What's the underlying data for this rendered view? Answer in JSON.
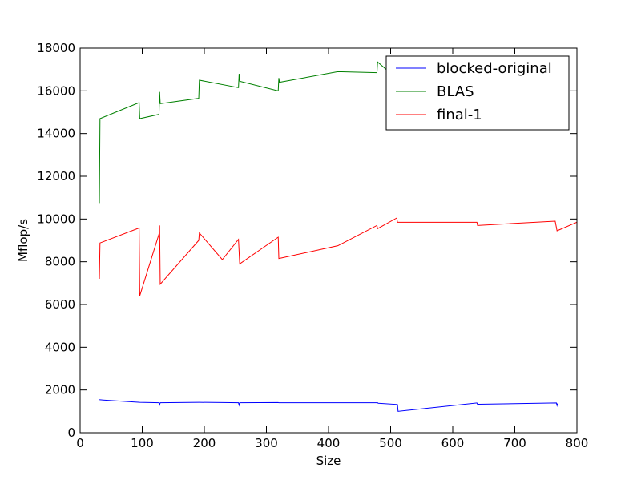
{
  "chart_data": {
    "type": "line",
    "title": "",
    "xlabel": "Size",
    "ylabel": "Mflop/s",
    "xlim": [
      0,
      800
    ],
    "ylim": [
      0,
      18000
    ],
    "x_ticks": [
      0,
      100,
      200,
      300,
      400,
      500,
      600,
      700,
      800
    ],
    "y_ticks": [
      0,
      2000,
      4000,
      6000,
      8000,
      10000,
      12000,
      14000,
      16000,
      18000
    ],
    "grid": false,
    "legend_position": "upper right",
    "series": [
      {
        "name": "blocked-original",
        "color": "#0000ff",
        "points": [
          [
            31,
            1550
          ],
          [
            32,
            1540
          ],
          [
            96,
            1420
          ],
          [
            127,
            1400
          ],
          [
            128,
            1310
          ],
          [
            129,
            1400
          ],
          [
            192,
            1420
          ],
          [
            229,
            1410
          ],
          [
            255,
            1400
          ],
          [
            256,
            1290
          ],
          [
            257,
            1400
          ],
          [
            319,
            1410
          ],
          [
            320,
            1400
          ],
          [
            479,
            1400
          ],
          [
            480,
            1380
          ],
          [
            511,
            1320
          ],
          [
            512,
            1000
          ],
          [
            639,
            1390
          ],
          [
            640,
            1320
          ],
          [
            641,
            1330
          ],
          [
            767,
            1390
          ],
          [
            768,
            1270
          ],
          [
            769,
            1370
          ]
        ]
      },
      {
        "name": "BLAS",
        "color": "#008000",
        "points": [
          [
            31,
            10750
          ],
          [
            32,
            14700
          ],
          [
            95,
            15450
          ],
          [
            96,
            14700
          ],
          [
            127,
            14900
          ],
          [
            128,
            15950
          ],
          [
            129,
            15400
          ],
          [
            191,
            15650
          ],
          [
            192,
            16500
          ],
          [
            255,
            16150
          ],
          [
            256,
            16800
          ],
          [
            257,
            16450
          ],
          [
            319,
            16000
          ],
          [
            320,
            16600
          ],
          [
            321,
            16400
          ],
          [
            415,
            16900
          ],
          [
            478,
            16850
          ],
          [
            479,
            17350
          ],
          [
            511,
            16550
          ]
        ]
      },
      {
        "name": "final-1",
        "color": "#ff0000",
        "points": [
          [
            31,
            7200
          ],
          [
            32,
            8880
          ],
          [
            95,
            9580
          ],
          [
            96,
            6400
          ],
          [
            127,
            9300
          ],
          [
            128,
            9700
          ],
          [
            129,
            6950
          ],
          [
            191,
            9000
          ],
          [
            192,
            9350
          ],
          [
            229,
            8100
          ],
          [
            255,
            9050
          ],
          [
            257,
            7900
          ],
          [
            319,
            9150
          ],
          [
            320,
            8150
          ],
          [
            415,
            8750
          ],
          [
            478,
            9700
          ],
          [
            479,
            9550
          ],
          [
            510,
            10050
          ],
          [
            511,
            9850
          ],
          [
            639,
            9850
          ],
          [
            640,
            9700
          ],
          [
            765,
            9900
          ],
          [
            768,
            9450
          ],
          [
            800,
            9850
          ]
        ]
      }
    ]
  }
}
